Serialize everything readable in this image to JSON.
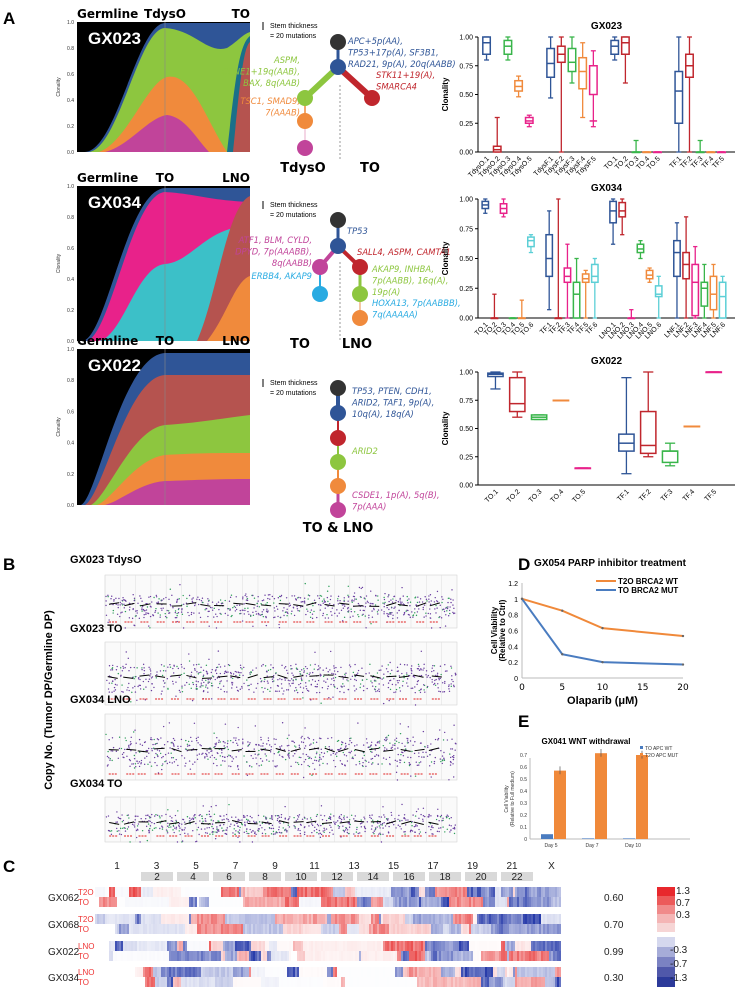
{
  "panel_labels": {
    "A": "A",
    "B": "B",
    "C": "C",
    "D": "D",
    "E": "E"
  },
  "colors": {
    "blue": "#2f5597",
    "green": "#8dc63f",
    "red": "#c0262d",
    "orange": "#f08a3c",
    "pink": "#c1449a",
    "cyan": "#29abe2",
    "root": "#333333"
  },
  "fishplots": [
    {
      "sample": "GX023",
      "timepoints": [
        "Germline",
        "TdysO",
        "TO"
      ],
      "ylabel": "Clonality",
      "yticks": [
        "1.0",
        "0.8",
        "0.6",
        "0.4",
        "0.2",
        "0.0"
      ]
    },
    {
      "sample": "GX034",
      "timepoints": [
        "Germline",
        "TO",
        "LNO"
      ],
      "ylabel": "Clonality",
      "yticks": [
        "1.0",
        "0.8",
        "0.6",
        "0.4",
        "0.2",
        "0.0"
      ]
    },
    {
      "sample": "GX022",
      "timepoints": [
        "Germline",
        "TO",
        "LNO"
      ],
      "ylabel": "Clonality",
      "yticks": [
        "1.0",
        "0.8",
        "0.6",
        "0.4",
        "0.2",
        "0.0"
      ]
    }
  ],
  "trees": [
    {
      "legend": [
        "Stem thickness",
        "= 20 mutations"
      ],
      "leaves": [
        "TdysO",
        "TO"
      ],
      "annotations": [
        {
          "lines": [
            "APC+5p(AA),",
            "TP53+17p(A), SF3B1,",
            "RAD21, 9p(A), 20q(AABB)"
          ],
          "color": "#2f5597"
        },
        {
          "lines": [
            "ASPM,",
            "CCNE1+19q(AAB),",
            "BAX, 8q(AAB)"
          ],
          "color": "#8dc63f"
        },
        {
          "lines": [
            "STK11+19(A),",
            "SMARCA4"
          ],
          "color": "#c0262d"
        },
        {
          "lines": [
            "TSC1, SMAD9,",
            "7(AAAB)"
          ],
          "color": "#f08a3c"
        }
      ]
    },
    {
      "legend": [
        "Stem thickness",
        "= 20 mutations"
      ],
      "leaves": [
        "TO",
        "LNO"
      ],
      "annotations": [
        {
          "lines": [
            "TP53"
          ],
          "color": "#2f5597"
        },
        {
          "lines": [
            "ATF1, BLM, CYLD,",
            "DPYD, 7p(AAABB),",
            "8q(AABB)"
          ],
          "color": "#c1449a"
        },
        {
          "lines": [
            "ERBB4, AKAP9"
          ],
          "color": "#29abe2"
        },
        {
          "lines": [
            "SALL4, ASPM, CAMTA1"
          ],
          "color": "#c0262d"
        },
        {
          "lines": [
            "AKAP9, INHBA,",
            "7p(AABB), 16q(A),",
            "19p(A)"
          ],
          "color": "#8dc63f"
        },
        {
          "lines": [
            "HOXA13, 7p(AABBB),",
            "7q(AAAAA)"
          ],
          "color": "#29abe2"
        }
      ]
    },
    {
      "legend": [
        "Stem thickness",
        "= 20 mutations"
      ],
      "leaves": [
        "TO & LNO"
      ],
      "annotations": [
        {
          "lines": [
            "TP53, PTEN, CDH1,",
            "ARID2, TAF1, 9p(A),",
            "10q(A), 18q(A)"
          ],
          "color": "#2f5597"
        },
        {
          "lines": [
            "ARID2"
          ],
          "color": "#8dc63f"
        },
        {
          "lines": [
            "CSDE1, 1p(A), 5q(B),",
            "7p(AAA)"
          ],
          "color": "#c1449a"
        }
      ]
    }
  ],
  "copy_number": {
    "ylabel": "Copy No. (Tumor DP/Germline DP)",
    "tracks": [
      "GX023 TdysO",
      "GX023 TO",
      "GX034 LNO",
      "GX034 TO"
    ]
  },
  "heatmap": {
    "chromosomes_top": [
      "1",
      "3",
      "5",
      "7",
      "9",
      "11",
      "13",
      "15",
      "17",
      "19",
      "21",
      "X"
    ],
    "chromosomes_boxed": [
      "2",
      "4",
      "6",
      "8",
      "10",
      "12",
      "14",
      "16",
      "18",
      "20",
      "22"
    ],
    "rows": [
      {
        "sample": "GX062",
        "labels": [
          "T2O",
          "TO"
        ],
        "value": "0.60"
      },
      {
        "sample": "GX068",
        "labels": [
          "T2O",
          "TO"
        ],
        "value": "0.70"
      },
      {
        "sample": "GX022",
        "labels": [
          "LNO",
          "TO"
        ],
        "value": "0.99"
      },
      {
        "sample": "GX034",
        "labels": [
          "LNO",
          "TO"
        ],
        "value": "0.30"
      }
    ],
    "scale_pos": [
      "1.3",
      "0.7",
      "0.3"
    ],
    "scale_neg": [
      "-0.3",
      "-0.7",
      "-1.3"
    ]
  },
  "chart_data": [
    {
      "type": "box",
      "title": "GX023",
      "ylabel": "Clonality",
      "ylim": [
        0,
        1
      ],
      "yticks": [
        "0.00",
        "0.25",
        "0.50",
        "0.75",
        "1.00"
      ],
      "groups": [
        {
          "categories": [
            "TdysO.1",
            "TdysO.2",
            "TdysO.3",
            "TdysO.4",
            "TdysO.5"
          ],
          "stats": [
            [
              0.8,
              0.85,
              0.95,
              1,
              1
            ],
            [
              0,
              0,
              0.02,
              0.05,
              0.3
            ],
            [
              0.8,
              0.85,
              0.92,
              0.97,
              1
            ],
            [
              0.48,
              0.53,
              0.57,
              0.62,
              0.66
            ],
            [
              0.22,
              0.25,
              0.27,
              0.3,
              0.32
            ]
          ]
        },
        {
          "categories": [
            "TdysF.1",
            "TdysF.2",
            "TdysF.3",
            "TdysF.4",
            "TdysF.5"
          ],
          "stats": [
            [
              0.47,
              0.65,
              0.77,
              0.9,
              1
            ],
            [
              0,
              0.78,
              0.85,
              0.92,
              1
            ],
            [
              0.6,
              0.7,
              0.78,
              0.9,
              1
            ],
            [
              0.3,
              0.55,
              0.7,
              0.82,
              0.95
            ],
            [
              0.22,
              0.5,
              0.27,
              0.75,
              0.88
            ]
          ]
        },
        {
          "categories": [
            "TO.1",
            "TO.2",
            "TO.3",
            "TO.4",
            "TO.5"
          ],
          "stats": [
            [
              0.8,
              0.85,
              0.92,
              0.97,
              1
            ],
            [
              0.6,
              0.85,
              0.95,
              1,
              1
            ],
            [
              0,
              0,
              0,
              0,
              0.1
            ],
            [
              0,
              0,
              0,
              0,
              0
            ],
            [
              0,
              0,
              0,
              0,
              0
            ]
          ]
        },
        {
          "categories": [
            "TF.1",
            "TF.2",
            "TF.3",
            "TF.4",
            "TF.5"
          ],
          "stats": [
            [
              0,
              0.25,
              0.53,
              0.7,
              1
            ],
            [
              0,
              0.65,
              0.75,
              0.85,
              1
            ],
            [
              0,
              0,
              0,
              0,
              0.1
            ],
            [
              0,
              0,
              0,
              0,
              0
            ],
            [
              0,
              0,
              0,
              0,
              0
            ]
          ]
        }
      ]
    },
    {
      "type": "box",
      "title": "GX034",
      "ylabel": "Clonality",
      "ylim": [
        0,
        1
      ],
      "yticks": [
        "0.00",
        "0.25",
        "0.50",
        "0.75",
        "1.00"
      ],
      "groups": [
        {
          "categories": [
            "TO.1",
            "TO.2",
            "TO.3",
            "TO.4",
            "TO.5",
            "TO.6"
          ],
          "stats": [
            [
              0.88,
              0.92,
              0.95,
              0.98,
              1
            ],
            [
              0,
              0,
              0,
              0,
              0.2
            ],
            [
              0.85,
              0.88,
              0.92,
              0.96,
              1
            ],
            [
              0,
              0,
              0,
              0,
              0
            ],
            [
              0,
              0,
              0,
              0,
              0.15
            ],
            [
              0.55,
              0.6,
              0.65,
              0.68,
              0.7
            ]
          ]
        },
        {
          "categories": [
            "TF.1",
            "TF.2",
            "TF.3",
            "TF.4",
            "TF.5",
            "TF.6"
          ],
          "stats": [
            [
              0.07,
              0.35,
              0.5,
              0.7,
              0.9
            ],
            [
              0,
              0,
              0,
              0,
              1
            ],
            [
              0,
              0.3,
              0.35,
              0.42,
              0.62
            ],
            [
              0,
              0,
              0.2,
              0.3,
              0.5
            ],
            [
              0,
              0.3,
              0.33,
              0.37,
              0.4
            ],
            [
              0,
              0.3,
              0.35,
              0.45,
              0.5
            ]
          ]
        },
        {
          "categories": [
            "LNO.1",
            "LNO.2",
            "LNO.3",
            "LNO.4",
            "LNO.5",
            "LNO.6"
          ],
          "stats": [
            [
              0.62,
              0.8,
              0.9,
              0.98,
              1
            ],
            [
              0.7,
              0.85,
              0.9,
              0.97,
              1
            ],
            [
              0,
              0,
              0,
              0,
              0.07
            ],
            [
              0.5,
              0.55,
              0.58,
              0.62,
              0.65
            ],
            [
              0.3,
              0.33,
              0.36,
              0.4,
              0.42
            ],
            [
              0,
              0.18,
              0.2,
              0.27,
              0.35
            ]
          ]
        },
        {
          "categories": [
            "LNF.1",
            "LNF.2",
            "LNF.3",
            "LNF.4",
            "LNF.5",
            "LNF.6"
          ],
          "stats": [
            [
              0,
              0.35,
              0.55,
              0.65,
              0.8
            ],
            [
              0,
              0.33,
              0.45,
              0.55,
              0.85
            ],
            [
              0,
              0.02,
              0.3,
              0.45,
              0.6
            ],
            [
              0,
              0.1,
              0.25,
              0.3,
              0.45
            ],
            [
              0,
              0.07,
              0.2,
              0.35,
              0.45
            ],
            [
              0,
              0,
              0.18,
              0.3,
              0.35
            ]
          ]
        }
      ]
    },
    {
      "type": "box",
      "title": "GX022",
      "ylabel": "Clonality",
      "ylim": [
        0,
        1
      ],
      "yticks": [
        "0.00",
        "0.25",
        "0.50",
        "0.75",
        "1.00"
      ],
      "groups": [
        {
          "categories": [
            "TO.1",
            "TO.2",
            "TO.3",
            "TO.4",
            "TO.5"
          ],
          "stats": [
            [
              0.85,
              0.96,
              0.98,
              0.99,
              1
            ],
            [
              0.6,
              0.65,
              0.72,
              0.95,
              1
            ],
            [
              0.58,
              0.58,
              0.6,
              0.62,
              0.62
            ],
            [
              0.75,
              0.75,
              0.75,
              0.75,
              0.75
            ],
            [
              0.15,
              0.15,
              0.15,
              0.15,
              0.15
            ]
          ]
        },
        {
          "categories": [
            "TF.1",
            "TF.2",
            "TF.3",
            "TF.4",
            "TF.5"
          ],
          "stats": [
            [
              0.1,
              0.3,
              0.37,
              0.45,
              0.95
            ],
            [
              0.25,
              0.28,
              0.35,
              0.65,
              1
            ],
            [
              0.17,
              0.2,
              0.3,
              0.3,
              0.37
            ],
            [
              0.52,
              0.52,
              0.52,
              0.52,
              0.52
            ],
            [
              1,
              1,
              1,
              1,
              1
            ]
          ]
        }
      ]
    },
    {
      "type": "line",
      "title": "GX054 PARP inhibitor treatment",
      "xlabel": "Olaparib (μM)",
      "ylabel": "Cell Viability",
      "ylabel2": "(Relative to Ctrl)",
      "x": [
        0,
        5,
        10,
        20
      ],
      "xticks": [
        "0",
        "5",
        "10",
        "15",
        "20"
      ],
      "ylim": [
        0,
        1.2
      ],
      "yticks": [
        "0",
        "0.2",
        "0.4",
        "0.6",
        "0.8",
        "1",
        "1.2"
      ],
      "legend": "top-right",
      "series": [
        {
          "name": "T2O  BRCA2 WT",
          "color": "#f0893a",
          "values": [
            1,
            0.85,
            0.63,
            0.53
          ]
        },
        {
          "name": "TO    BRCA2 MUT",
          "color": "#4a7cc0",
          "values": [
            1,
            0.3,
            0.2,
            0.17
          ]
        }
      ]
    },
    {
      "type": "bar",
      "title": "GX041 WNT withdrawal",
      "ylabel": "Cell Viability",
      "ylabel2": "(Relative to Full medium)",
      "categories": [
        "Day 5",
        "Day 7",
        "Day 10"
      ],
      "ylim": [
        0,
        0.8
      ],
      "yticks": [
        "0",
        "0.1",
        "0.2",
        "0.3",
        "0.4",
        "0.5",
        "0.6",
        "0.7",
        "0.8"
      ],
      "legend": "top-right",
      "series": [
        {
          "name": "TO    APC WT",
          "color": "#4a7cc0",
          "values": [
            0.04,
            0.005,
            0.005
          ]
        },
        {
          "name": "T2O  APC MUT",
          "color": "#f0893a",
          "values": [
            0.57,
            0.715,
            0.7
          ]
        }
      ]
    }
  ]
}
